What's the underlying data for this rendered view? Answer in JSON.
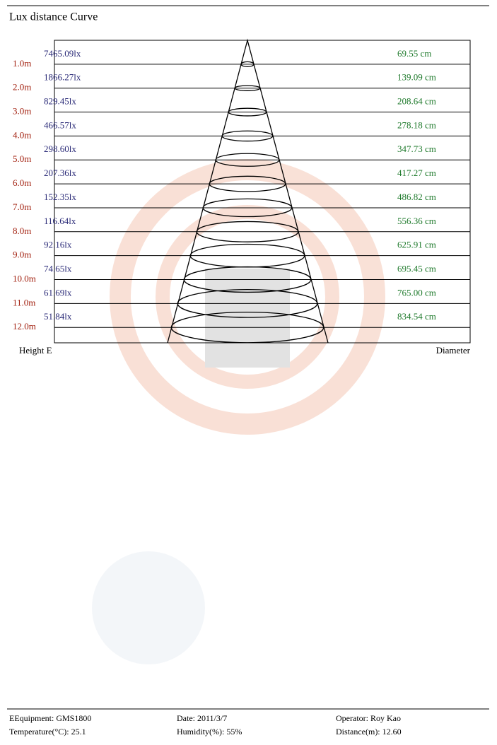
{
  "title": "Lux distance Curve",
  "rows": [
    {
      "height": "1.0m",
      "lux": "7465.09lx",
      "diameter": "69.55 cm"
    },
    {
      "height": "2.0m",
      "lux": "1866.27lx",
      "diameter": "139.09 cm"
    },
    {
      "height": "3.0m",
      "lux": "829.45lx",
      "diameter": "208.64 cm"
    },
    {
      "height": "4.0m",
      "lux": "466.57lx",
      "diameter": "278.18 cm"
    },
    {
      "height": "5.0m",
      "lux": "298.60lx",
      "diameter": "347.73 cm"
    },
    {
      "height": "6.0m",
      "lux": "207.36lx",
      "diameter": "417.27 cm"
    },
    {
      "height": "7.0m",
      "lux": "152.35lx",
      "diameter": "486.82 cm"
    },
    {
      "height": "8.0m",
      "lux": "116.64lx",
      "diameter": "556.36 cm"
    },
    {
      "height": "9.0m",
      "lux": "92.16lx",
      "diameter": "625.91 cm"
    },
    {
      "height": "10.0m",
      "lux": "74.65lx",
      "diameter": "695.45 cm"
    },
    {
      "height": "11.0m",
      "lux": "61.69lx",
      "diameter": "765.00 cm"
    },
    {
      "height": "12.0m",
      "lux": "51.84lx",
      "diameter": "834.54 cm"
    }
  ],
  "axis_labels": {
    "left": "Height  E",
    "right": "Diameter"
  },
  "footer": {
    "equipment": "EEquipment: GMS1800",
    "date": "Date: 2011/3/7",
    "operator": "Operator: Roy Kao",
    "temperature": "Temperature(°C): 25.1",
    "humidity": "Humidity(%): 55%",
    "distance": "Distance(m): 12.60"
  }
}
